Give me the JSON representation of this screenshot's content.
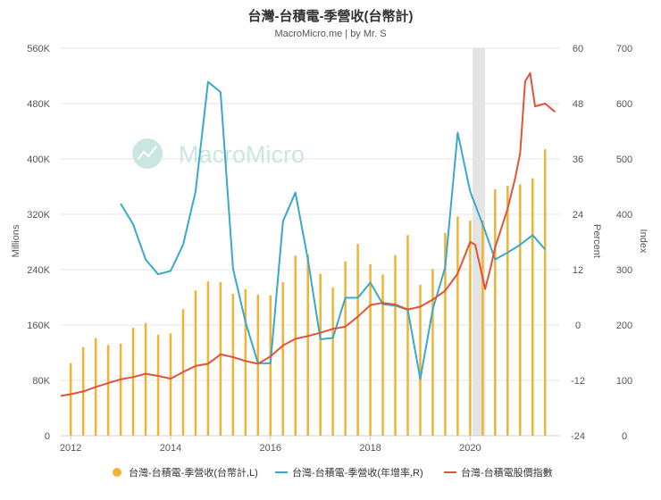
{
  "title": "台灣-台積電-季營收(台幣計)",
  "subtitle": "MacroMicro.me | by Mr. S",
  "watermark": "MacroMicro",
  "colors": {
    "revenue": "#f2b233",
    "yoy": "#3aa9c9",
    "index": "#e0533a",
    "highlight": "#e4e4e4",
    "grid": "#e6e6e6",
    "axis_text": "#555555",
    "watermark": "#c9e6e0"
  },
  "axes": {
    "left_label": "Millions",
    "right1_label": "Percent",
    "right2_label": "Index",
    "left_ticks": [
      "0",
      "80K",
      "160K",
      "240K",
      "320K",
      "400K",
      "480K",
      "560K"
    ],
    "right1_ticks": [
      "-24",
      "-12",
      "0",
      "12",
      "24",
      "36",
      "48",
      "60"
    ],
    "right2_ticks": [
      "0",
      "100",
      "200",
      "300",
      "400",
      "500",
      "600",
      "700"
    ],
    "x_ticks": [
      "2012",
      "2014",
      "2016",
      "2018",
      "2020"
    ]
  },
  "legend": [
    {
      "label": "台灣-台積電-季營收(台幣計,L)",
      "shape": "dot",
      "color": "#f2b233"
    },
    {
      "label": "台灣-台積電-季營收(年增率,R)",
      "shape": "line",
      "color": "#3aa9c9"
    },
    {
      "label": "台灣-台積電股價指數",
      "shape": "line",
      "color": "#e0533a"
    }
  ],
  "chart_data": {
    "type": "bar",
    "title": "台灣-台積電-季營收(台幣計)",
    "x_range": [
      2011.8,
      2021.8
    ],
    "highlight_range": [
      2020.05,
      2020.3
    ],
    "revenue_axis": {
      "label": "Millions",
      "range": [
        0,
        560000
      ]
    },
    "yoy_axis": {
      "label": "Percent",
      "range": [
        -24,
        60
      ]
    },
    "index_axis": {
      "label": "Index",
      "range": [
        0,
        700
      ]
    },
    "series": [
      {
        "name": "台灣-台積電-季營收(台幣計,L)",
        "type": "bar",
        "axis": "revenue",
        "x": [
          2012.0,
          2012.25,
          2012.5,
          2012.75,
          2013.0,
          2013.25,
          2013.5,
          2013.75,
          2014.0,
          2014.25,
          2014.5,
          2014.75,
          2015.0,
          2015.25,
          2015.5,
          2015.75,
          2016.0,
          2016.25,
          2016.5,
          2016.75,
          2017.0,
          2017.25,
          2017.5,
          2017.75,
          2018.0,
          2018.25,
          2018.5,
          2018.75,
          2019.0,
          2019.25,
          2019.5,
          2019.75,
          2020.0,
          2020.25,
          2020.5,
          2020.75,
          2021.0,
          2021.25,
          2021.5
        ],
        "values": [
          105000,
          128000,
          141000,
          131000,
          133000,
          156000,
          163000,
          146000,
          148000,
          183000,
          210000,
          223000,
          222000,
          205000,
          212000,
          204000,
          203000,
          222000,
          260000,
          262000,
          234000,
          214000,
          252000,
          277000,
          248000,
          233000,
          261000,
          290000,
          218000,
          241000,
          293000,
          317000,
          311000,
          311000,
          356000,
          361000,
          363000,
          372000,
          414000
        ]
      },
      {
        "name": "台灣-台積電-季營收(年增率,R)",
        "type": "line",
        "axis": "yoy",
        "x": [
          2013.0,
          2013.25,
          2013.5,
          2013.75,
          2014.0,
          2014.25,
          2014.5,
          2014.75,
          2015.0,
          2015.25,
          2015.5,
          2015.75,
          2016.0,
          2016.25,
          2016.5,
          2016.75,
          2017.0,
          2017.25,
          2017.5,
          2017.75,
          2018.0,
          2018.25,
          2018.5,
          2018.75,
          2019.0,
          2019.25,
          2019.5,
          2019.75,
          2020.0,
          2020.25,
          2020.5,
          2020.75,
          2021.0,
          2021.25,
          2021.5
        ],
        "values": [
          26.3,
          21.8,
          14.2,
          11.0,
          11.7,
          17.4,
          28.9,
          52.7,
          50.5,
          12.2,
          0.7,
          -8.3,
          -8.3,
          22.5,
          28.7,
          14.2,
          -3.1,
          -2.8,
          5.9,
          5.9,
          9.2,
          4.5,
          4.2,
          3.3,
          -11.7,
          3.4,
          12.5,
          41.7,
          28.9,
          21.8,
          14.2,
          15.7,
          17.4,
          19.5,
          16.4
        ]
      },
      {
        "name": "台灣-台積電股價指數",
        "type": "line",
        "axis": "index",
        "x": [
          2011.8,
          2012.0,
          2012.25,
          2012.5,
          2012.75,
          2013.0,
          2013.25,
          2013.5,
          2013.75,
          2014.0,
          2014.25,
          2014.5,
          2014.75,
          2015.0,
          2015.25,
          2015.5,
          2015.75,
          2016.0,
          2016.25,
          2016.5,
          2016.75,
          2017.0,
          2017.25,
          2017.5,
          2017.75,
          2018.0,
          2018.25,
          2018.5,
          2018.75,
          2019.0,
          2019.25,
          2019.5,
          2019.75,
          2020.0,
          2020.1,
          2020.2,
          2020.3,
          2020.4,
          2020.5,
          2020.75,
          2020.9,
          2021.0,
          2021.1,
          2021.2,
          2021.3,
          2021.5,
          2021.7
        ],
        "values": [
          72,
          75,
          80,
          88,
          95,
          102,
          106,
          112,
          108,
          103,
          115,
          126,
          130,
          147,
          142,
          135,
          130,
          143,
          163,
          175,
          180,
          186,
          193,
          197,
          215,
          236,
          240,
          237,
          228,
          233,
          246,
          262,
          293,
          350,
          345,
          305,
          265,
          300,
          340,
          410,
          465,
          510,
          640,
          655,
          595,
          600,
          585
        ]
      }
    ]
  }
}
